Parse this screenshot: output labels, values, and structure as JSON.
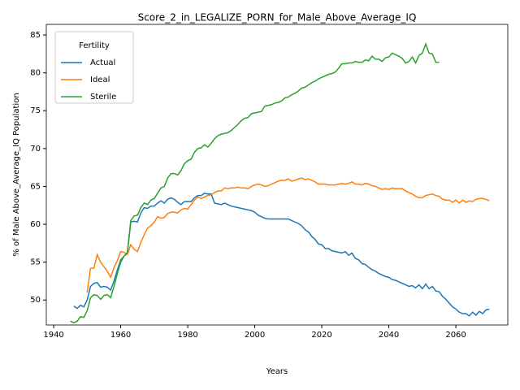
{
  "chart_data": {
    "type": "line",
    "title": "Score_2_in_LEGALIZE_PORN_for_Male_Above_Average_IQ",
    "x_label": "Years",
    "y_label": "% of Male Above_Average_IQ Population",
    "legend_title": "Fertility",
    "legend": "upper left",
    "grid": false,
    "xlim": [
      1937.8,
      2075.5
    ],
    "ylim": [
      46.7,
      86.4
    ],
    "xticks": [
      1940,
      1960,
      1980,
      2000,
      2020,
      2040,
      2060
    ],
    "yticks": [
      50,
      55,
      60,
      65,
      70,
      75,
      80,
      85
    ],
    "x": [
      1945,
      1946,
      1947,
      1948,
      1949,
      1950,
      1951,
      1952,
      1953,
      1954,
      1955,
      1956,
      1957,
      1958,
      1959,
      1960,
      1961,
      1962,
      1963,
      1964,
      1965,
      1966,
      1967,
      1968,
      1969,
      1970,
      1971,
      1972,
      1973,
      1974,
      1975,
      1976,
      1977,
      1978,
      1979,
      1980,
      1981,
      1982,
      1983,
      1984,
      1985,
      1986,
      1987,
      1988,
      1989,
      1990,
      1991,
      1992,
      1993,
      1994,
      1995,
      1996,
      1997,
      1998,
      1999,
      2000,
      2001,
      2002,
      2003,
      2004,
      2005,
      2006,
      2007,
      2008,
      2009,
      2010,
      2011,
      2012,
      2013,
      2014,
      2015,
      2016,
      2017,
      2018,
      2019,
      2020,
      2021,
      2022,
      2023,
      2024,
      2025,
      2026,
      2027,
      2028,
      2029,
      2030,
      2031,
      2032,
      2033,
      2034,
      2035,
      2036,
      2037,
      2038,
      2039,
      2040,
      2041,
      2042,
      2043,
      2044,
      2045,
      2046,
      2047,
      2048,
      2049,
      2050,
      2051,
      2052,
      2053,
      2054,
      2055,
      2056,
      2057,
      2058,
      2059,
      2060,
      2061,
      2062,
      2063,
      2064,
      2065,
      2066,
      2067,
      2068,
      2069,
      2070
    ],
    "series": [
      {
        "name": "Actual",
        "color": "#1f77b4",
        "values": [
          null,
          49.2,
          48.9,
          49.3,
          49.1,
          50.0,
          51.8,
          52.2,
          52.3,
          51.7,
          51.8,
          51.7,
          51.3,
          52.5,
          54.0,
          55.3,
          55.8,
          56.2,
          60.3,
          60.4,
          60.3,
          61.5,
          62.2,
          62.1,
          62.4,
          62.4,
          62.8,
          63.1,
          62.8,
          63.3,
          63.5,
          63.3,
          62.9,
          62.6,
          63.0,
          63.0,
          63.0,
          63.5,
          63.8,
          63.8,
          64.1,
          64.0,
          64.0,
          62.8,
          62.7,
          62.6,
          62.8,
          62.6,
          62.4,
          62.3,
          62.2,
          62.1,
          62.0,
          61.9,
          61.8,
          61.6,
          61.2,
          61.0,
          60.8,
          60.7,
          60.7,
          60.7,
          60.7,
          60.7,
          60.7,
          60.7,
          60.5,
          60.3,
          60.1,
          59.8,
          59.3,
          59.0,
          58.4,
          58.0,
          57.4,
          57.3,
          56.8,
          56.8,
          56.5,
          56.4,
          56.3,
          56.2,
          56.4,
          55.9,
          56.2,
          55.5,
          55.3,
          54.8,
          54.7,
          54.3,
          54.0,
          53.8,
          53.5,
          53.3,
          53.1,
          53.0,
          52.7,
          52.6,
          52.4,
          52.2,
          52.0,
          51.8,
          51.9,
          51.6,
          52.0,
          51.5,
          52.1,
          51.5,
          51.8,
          51.2,
          51.1,
          50.5,
          50.1,
          49.6,
          49.1,
          48.8,
          48.4,
          48.2,
          48.2,
          47.9,
          48.4,
          48.0,
          48.5,
          48.2,
          48.7,
          48.8
        ]
      },
      {
        "name": "Ideal",
        "color": "#ff7f0e",
        "values": [
          null,
          null,
          null,
          null,
          null,
          51.0,
          54.2,
          54.2,
          56.0,
          55.0,
          54.4,
          53.8,
          53.0,
          54.3,
          55.2,
          56.4,
          56.3,
          56.0,
          57.3,
          56.7,
          56.4,
          57.6,
          58.6,
          59.5,
          59.8,
          60.3,
          61.0,
          60.8,
          60.9,
          61.4,
          61.6,
          61.6,
          61.5,
          61.9,
          62.1,
          62.0,
          62.6,
          63.2,
          63.6,
          63.4,
          63.6,
          63.8,
          63.9,
          64.2,
          64.4,
          64.4,
          64.8,
          64.7,
          64.8,
          64.8,
          64.9,
          64.8,
          64.8,
          64.7,
          65.0,
          65.2,
          65.3,
          65.2,
          65.0,
          65.1,
          65.3,
          65.5,
          65.7,
          65.8,
          65.8,
          66.0,
          65.7,
          65.8,
          66.0,
          66.1,
          65.9,
          66.0,
          65.8,
          65.6,
          65.3,
          65.3,
          65.3,
          65.2,
          65.2,
          65.2,
          65.3,
          65.4,
          65.3,
          65.4,
          65.6,
          65.3,
          65.3,
          65.2,
          65.4,
          65.3,
          65.1,
          65.0,
          64.8,
          64.6,
          64.7,
          64.6,
          64.8,
          64.7,
          64.7,
          64.7,
          64.4,
          64.2,
          64.0,
          63.7,
          63.5,
          63.5,
          63.8,
          63.9,
          64.0,
          63.8,
          63.7,
          63.3,
          63.2,
          63.2,
          62.9,
          63.2,
          62.8,
          63.2,
          62.9,
          63.1,
          63.0,
          63.3,
          63.4,
          63.4,
          63.3,
          63.1
        ]
      },
      {
        "name": "Sterile",
        "color": "#2ca02c",
        "values": [
          47.2,
          47.0,
          47.2,
          47.8,
          47.7,
          48.6,
          50.3,
          50.7,
          50.6,
          50.1,
          50.6,
          50.7,
          50.3,
          51.8,
          53.5,
          55.0,
          55.8,
          56.3,
          60.5,
          61.1,
          61.2,
          62.2,
          62.8,
          62.6,
          63.2,
          63.4,
          64.1,
          64.8,
          65.0,
          66.1,
          66.7,
          66.7,
          66.5,
          67.1,
          68.0,
          68.4,
          68.6,
          69.5,
          70.0,
          70.1,
          70.5,
          70.2,
          70.7,
          71.3,
          71.7,
          71.9,
          72.0,
          72.1,
          72.4,
          72.8,
          73.2,
          73.7,
          74.0,
          74.1,
          74.6,
          74.7,
          74.8,
          74.9,
          75.6,
          75.7,
          75.8,
          76.0,
          76.1,
          76.3,
          76.7,
          76.8,
          77.1,
          77.3,
          77.6,
          78.0,
          78.1,
          78.4,
          78.7,
          78.9,
          79.2,
          79.4,
          79.6,
          79.8,
          79.9,
          80.1,
          80.6,
          81.2,
          81.2,
          81.3,
          81.3,
          81.5,
          81.4,
          81.4,
          81.7,
          81.6,
          82.2,
          81.8,
          81.8,
          81.5,
          82.0,
          82.1,
          82.6,
          82.4,
          82.2,
          81.9,
          81.3,
          81.5,
          82.1,
          81.3,
          82.3,
          82.6,
          83.8,
          82.6,
          82.5,
          81.4,
          81.4,
          null,
          null,
          null,
          null,
          null,
          null,
          null,
          null,
          null,
          null,
          null,
          null,
          null,
          null,
          null
        ]
      }
    ]
  }
}
